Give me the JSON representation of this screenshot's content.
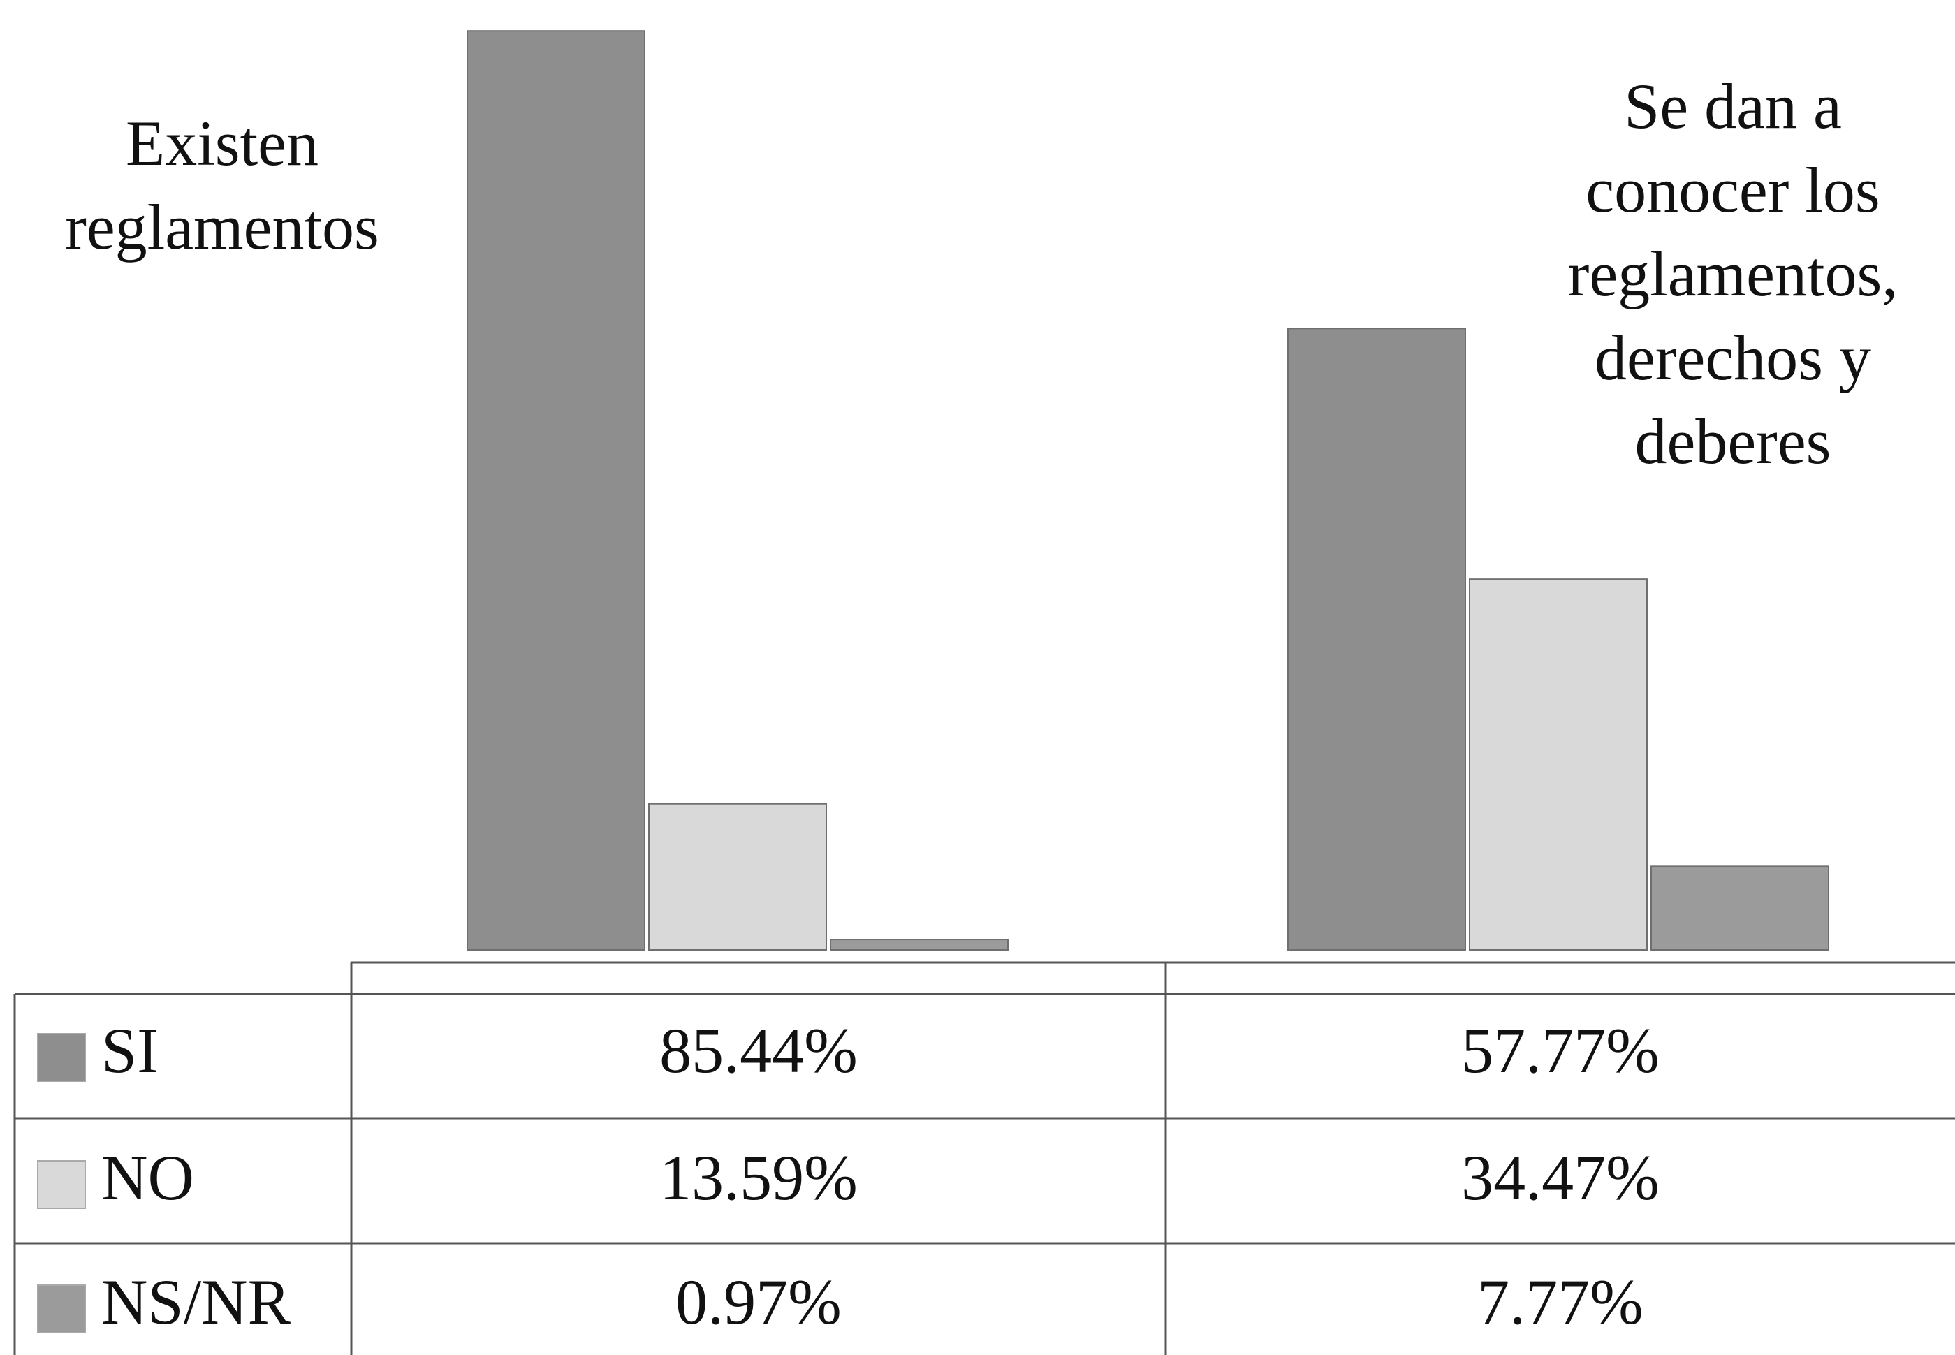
{
  "chart_data": {
    "type": "bar",
    "categories": [
      "Existen reglamentos",
      "Se dan a conocer los reglamentos, derechos y deberes"
    ],
    "series": [
      {
        "name": "SI",
        "color": "#8e8e8e",
        "values": [
          85.44,
          57.77
        ],
        "value_labels": [
          "85.44%",
          "57.77%"
        ]
      },
      {
        "name": "NO",
        "color": "#d9d9d9",
        "values": [
          13.59,
          34.47
        ],
        "value_labels": [
          "13.59%",
          "34.47%"
        ]
      },
      {
        "name": "NS/NR",
        "color": "#9b9b9b",
        "values": [
          0.97,
          7.77
        ],
        "value_labels": [
          "0.97%",
          "7.77%"
        ]
      }
    ]
  }
}
